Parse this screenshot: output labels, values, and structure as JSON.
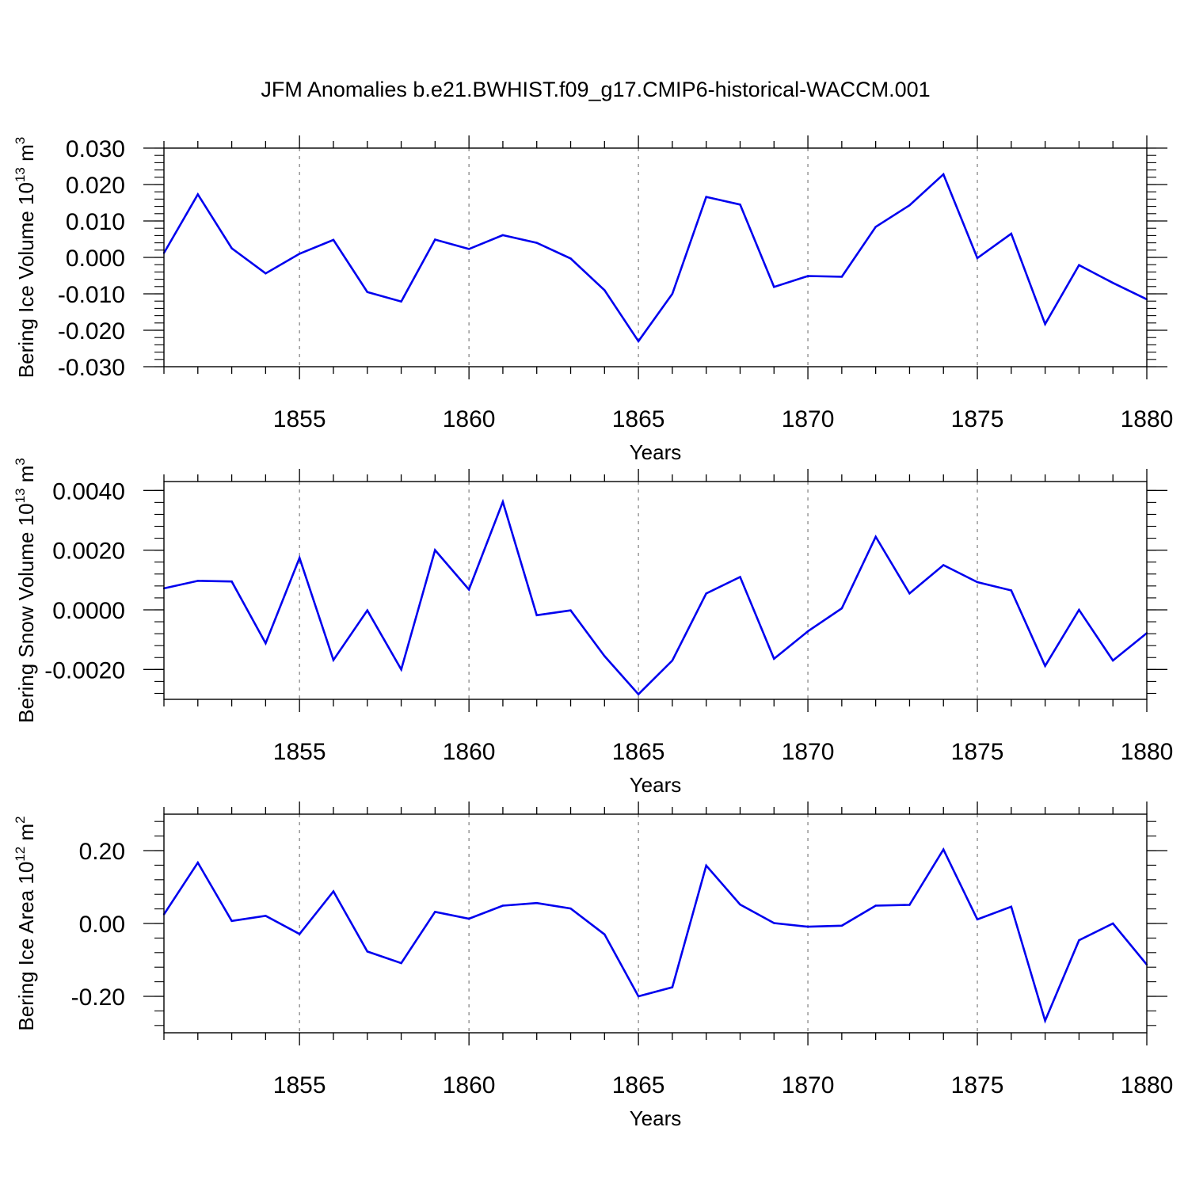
{
  "title": "JFM Anomalies b.e21.BWHIST.f09_g17.CMIP6-historical-WACCM.001",
  "line_color": "#0000ee",
  "chart_data": [
    {
      "type": "line",
      "ylabel": "Bering Ice Volume 10",
      "ylabel_exp": "13",
      "ylabel_unit": " m",
      "ylabel_unit_exp": "3",
      "xlabel": "Years",
      "xlim": [
        1851,
        1880
      ],
      "ylim": [
        -0.03,
        0.03
      ],
      "yticks": [
        -0.03,
        -0.02,
        -0.01,
        0.0,
        0.01,
        0.02,
        0.03
      ],
      "ytick_labels": [
        "-0.030",
        "-0.020",
        "-0.010",
        "0.000",
        "0.010",
        "0.020",
        "0.030"
      ],
      "xticks": [
        1855,
        1860,
        1865,
        1870,
        1875,
        1880
      ],
      "xtick_labels": [
        "1855",
        "1860",
        "1865",
        "1870",
        "1875",
        "1880"
      ],
      "x": [
        1851,
        1852,
        1853,
        1854,
        1855,
        1856,
        1857,
        1858,
        1859,
        1860,
        1861,
        1862,
        1863,
        1864,
        1865,
        1866,
        1867,
        1868,
        1869,
        1870,
        1871,
        1872,
        1873,
        1874,
        1875,
        1876,
        1877,
        1878,
        1879,
        1880
      ],
      "values": [
        0.0012,
        0.0173,
        0.0025,
        -0.0044,
        0.001,
        0.0048,
        -0.0095,
        -0.0121,
        0.0049,
        0.0023,
        0.0061,
        0.004,
        -0.0003,
        -0.009,
        -0.023,
        -0.01,
        0.0166,
        0.0145,
        -0.0081,
        -0.0051,
        -0.0053,
        0.0084,
        0.0143,
        0.0228,
        -0.0002,
        0.0065,
        -0.0183,
        -0.0021,
        -0.007,
        -0.0115
      ]
    },
    {
      "type": "line",
      "ylabel": "Bering Snow Volume 10",
      "ylabel_exp": "13",
      "ylabel_unit": " m",
      "ylabel_unit_exp": "3",
      "xlabel": "Years",
      "xlim": [
        1851,
        1880
      ],
      "ylim": [
        -0.003,
        0.0043
      ],
      "yticks": [
        -0.002,
        0.0,
        0.002,
        0.004
      ],
      "ytick_labels": [
        "-0.0020",
        "0.0000",
        "0.0020",
        "0.0040"
      ],
      "xticks": [
        1855,
        1860,
        1865,
        1870,
        1875,
        1880
      ],
      "xtick_labels": [
        "1855",
        "1860",
        "1865",
        "1870",
        "1875",
        "1880"
      ],
      "x": [
        1851,
        1852,
        1853,
        1854,
        1855,
        1856,
        1857,
        1858,
        1859,
        1860,
        1861,
        1862,
        1863,
        1864,
        1865,
        1866,
        1867,
        1868,
        1869,
        1870,
        1871,
        1872,
        1873,
        1874,
        1875,
        1876,
        1877,
        1878,
        1879,
        1880
      ],
      "values": [
        0.00072,
        0.00097,
        0.00095,
        -0.00112,
        0.00174,
        -0.00168,
        -2e-05,
        -0.002,
        0.002,
        0.00068,
        0.00362,
        -0.00018,
        -2e-05,
        -0.00155,
        -0.00283,
        -0.0017,
        0.00055,
        0.0011,
        -0.00164,
        -0.00072,
        5e-05,
        0.00245,
        0.00055,
        0.0015,
        0.00093,
        0.00065,
        -0.00188,
        0.0,
        -0.0017,
        -0.00078
      ]
    },
    {
      "type": "line",
      "ylabel": "Bering Ice Area 10",
      "ylabel_exp": "12",
      "ylabel_unit": " m",
      "ylabel_unit_exp": "2",
      "xlabel": "Years",
      "xlim": [
        1851,
        1880
      ],
      "ylim": [
        -0.3,
        0.3
      ],
      "yticks": [
        -0.2,
        0.0,
        0.2
      ],
      "ytick_labels": [
        "-0.20",
        "0.00",
        "0.20"
      ],
      "xticks": [
        1855,
        1860,
        1865,
        1870,
        1875,
        1880
      ],
      "xtick_labels": [
        "1855",
        "1860",
        "1865",
        "1870",
        "1875",
        "1880"
      ],
      "x": [
        1851,
        1852,
        1853,
        1854,
        1855,
        1856,
        1857,
        1858,
        1859,
        1860,
        1861,
        1862,
        1863,
        1864,
        1865,
        1866,
        1867,
        1868,
        1869,
        1870,
        1871,
        1872,
        1873,
        1874,
        1875,
        1876,
        1877,
        1878,
        1879,
        1880
      ],
      "values": [
        0.025,
        0.167,
        0.007,
        0.021,
        -0.029,
        0.088,
        -0.077,
        -0.109,
        0.032,
        0.013,
        0.049,
        0.056,
        0.041,
        -0.03,
        -0.2,
        -0.175,
        0.159,
        0.052,
        0.001,
        -0.009,
        -0.006,
        0.049,
        0.051,
        0.203,
        0.011,
        0.046,
        -0.267,
        -0.046,
        0.0,
        -0.113
      ]
    }
  ]
}
